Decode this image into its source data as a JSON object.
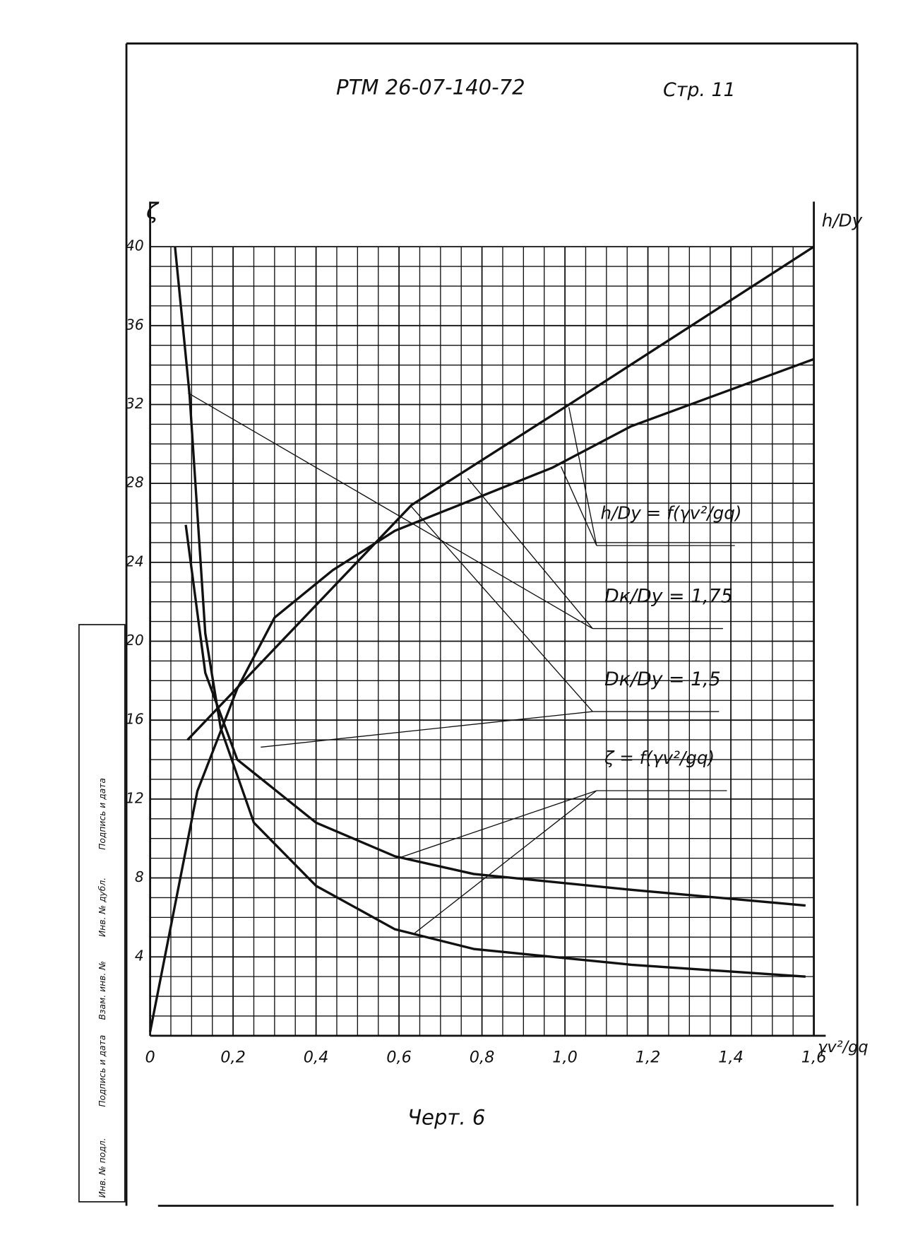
{
  "chart_data": {
    "type": "line",
    "title": "РТМ 26-07-140-72",
    "page_label": "Стр. 11",
    "caption": "Черт. 6",
    "y_label": "ζ",
    "y2_label": "h/Dy",
    "x_label": "γv²/gq",
    "annotations": [
      "h/Dy = f(γv²/gq)",
      "Dк/Dy = 1,75",
      "Dк/Dy = 1,5",
      "ζ = f(γv²/gq)"
    ],
    "stamp": [
      "Инв. № подл.",
      "Подпись и дата",
      "Взам. инв. №",
      "Инв. № дубл.",
      "Подпись и дата"
    ],
    "xlim": [
      0,
      1.6
    ],
    "ylim": [
      0,
      40
    ],
    "xticks": [
      0,
      {
        "value": 0.2,
        "label": "0,2"
      },
      {
        "value": 0.4,
        "label": "0,4"
      },
      {
        "value": 0.6,
        "label": "0,6"
      },
      {
        "value": 0.8,
        "label": "0,8"
      },
      {
        "value": 1.0,
        "label": "1,0"
      },
      {
        "value": 1.2,
        "label": "1,2"
      },
      {
        "value": 1.4,
        "label": "1,4"
      },
      {
        "value": 1.6,
        "label": "1,6"
      }
    ],
    "yticks": [
      4,
      8,
      12,
      16,
      20,
      24,
      28,
      32,
      36,
      40
    ],
    "grid": true,
    "series": [
      {
        "color": "#111111",
        "x": [
          0.086,
          0.133,
          0.21,
          0.4,
          0.59,
          0.78,
          1.16,
          1.58
        ],
        "values": [
          25.9,
          18.4,
          14,
          10.8,
          9.1,
          8.2,
          7.4,
          6.6
        ]
      },
      {
        "color": "#111111",
        "x": [
          0.06,
          0.095,
          0.133,
          0.17,
          0.25,
          0.4,
          0.59,
          0.78,
          1.16,
          1.58
        ],
        "values": [
          40,
          32.5,
          20.4,
          15.6,
          10.8,
          7.6,
          5.4,
          4.4,
          3.6,
          3.0
        ]
      },
      {
        "color": "#111111",
        "x": [
          0,
          0.114,
          0.21,
          0.3,
          0.44,
          0.59,
          0.78,
          0.97,
          1.16,
          1.6
        ],
        "values": [
          0.2,
          12.4,
          17.6,
          21.2,
          23.6,
          25.6,
          27.2,
          28.8,
          30.9,
          34.3
        ]
      },
      {
        "color": "#111111",
        "x": [
          0.09,
          0.63,
          1.01,
          1.6
        ],
        "values": [
          15,
          26.9,
          32,
          40
        ]
      }
    ]
  }
}
